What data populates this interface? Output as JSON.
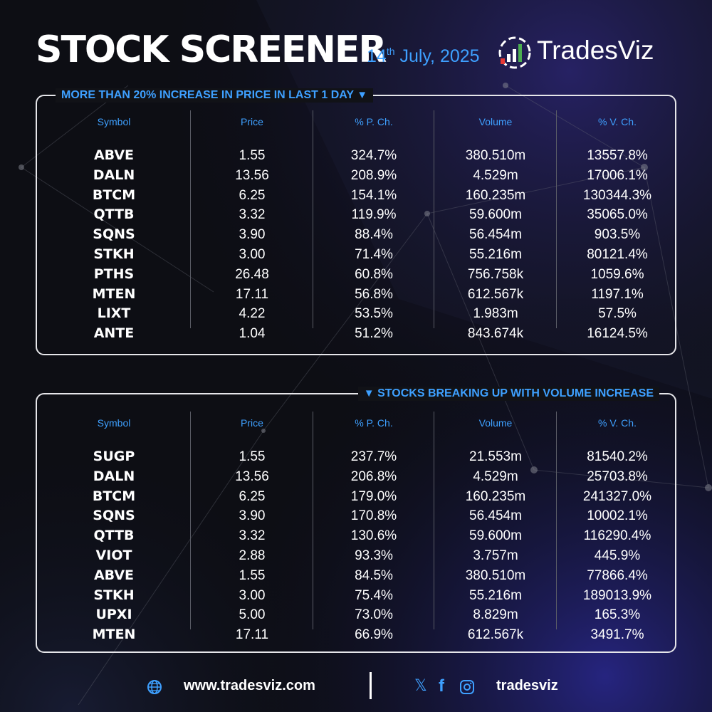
{
  "header": {
    "title": "STOCK SCREENER",
    "date_day": "14",
    "date_suffix": "th",
    "date_rest": " July, 2025",
    "brand": "TradesViz"
  },
  "columns": [
    "Symbol",
    "Price",
    "% P. Ch.",
    "Volume",
    "% V. Ch."
  ],
  "panel1": {
    "title": "MORE THAN 20% INCREASE IN PRICE IN LAST 1 DAY",
    "rows": [
      [
        "ABVE",
        "1.55",
        "324.7%",
        "380.510m",
        "13557.8%"
      ],
      [
        "DALN",
        "13.56",
        "208.9%",
        "4.529m",
        "17006.1%"
      ],
      [
        "BTCM",
        "6.25",
        "154.1%",
        "160.235m",
        "130344.3%"
      ],
      [
        "QTTB",
        "3.32",
        "119.9%",
        "59.600m",
        "35065.0%"
      ],
      [
        "SQNS",
        "3.90",
        "88.4%",
        "56.454m",
        "903.5%"
      ],
      [
        "STKH",
        "3.00",
        "71.4%",
        "55.216m",
        "80121.4%"
      ],
      [
        "PTHS",
        "26.48",
        "60.8%",
        "756.758k",
        "1059.6%"
      ],
      [
        "MTEN",
        "17.11",
        "56.8%",
        "612.567k",
        "1197.1%"
      ],
      [
        "LIXT",
        "4.22",
        "53.5%",
        "1.983m",
        "57.5%"
      ],
      [
        "ANTE",
        "1.04",
        "51.2%",
        "843.674k",
        "16124.5%"
      ]
    ]
  },
  "panel2": {
    "title": "STOCKS BREAKING UP WITH VOLUME INCREASE",
    "rows": [
      [
        "SUGP",
        "1.55",
        "237.7%",
        "21.553m",
        "81540.2%"
      ],
      [
        "DALN",
        "13.56",
        "206.8%",
        "4.529m",
        "25703.8%"
      ],
      [
        "BTCM",
        "6.25",
        "179.0%",
        "160.235m",
        "241327.0%"
      ],
      [
        "SQNS",
        "3.90",
        "170.8%",
        "56.454m",
        "10002.1%"
      ],
      [
        "QTTB",
        "3.32",
        "130.6%",
        "59.600m",
        "116290.4%"
      ],
      [
        "VIOT",
        "2.88",
        "93.3%",
        "3.757m",
        "445.9%"
      ],
      [
        "ABVE",
        "1.55",
        "84.5%",
        "380.510m",
        "77866.4%"
      ],
      [
        "STKH",
        "3.00",
        "75.4%",
        "55.216m",
        "189013.9%"
      ],
      [
        "UPXI",
        "5.00",
        "73.0%",
        "8.829m",
        "165.3%"
      ],
      [
        "MTEN",
        "17.11",
        "66.9%",
        "612.567k",
        "3491.7%"
      ]
    ]
  },
  "footer": {
    "website": "www.tradesviz.com",
    "handle": "tradesviz",
    "x_glyph": "𝕏",
    "fb_glyph": "f"
  },
  "colors": {
    "accent": "#3ea0ff",
    "background": "#0c0d14",
    "border": "#e6e6ea"
  },
  "icons": [
    "globe-icon",
    "x-icon",
    "facebook-icon",
    "instagram-icon",
    "tradesviz-logo-icon"
  ]
}
